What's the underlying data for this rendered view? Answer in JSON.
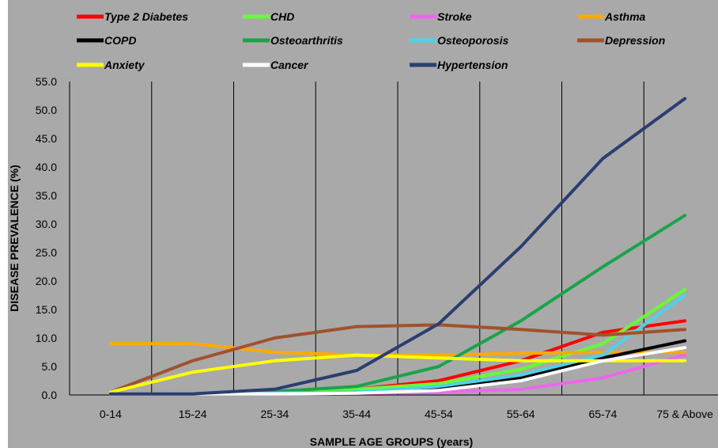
{
  "chart_data": {
    "type": "line",
    "title": "",
    "xlabel": "SAMPLE AGE GROUPS (years)",
    "ylabel": "DISEASE PREVALENCE (%)",
    "ylim": [
      0,
      55
    ],
    "y_ticks": [
      "0.0",
      "5.0",
      "10.0",
      "15.0",
      "20.0",
      "25.0",
      "30.0",
      "35.0",
      "40.0",
      "45.0",
      "50.0",
      "55.0"
    ],
    "grid": "vertical",
    "legend_position": "top",
    "background_color": "#a9a9a9",
    "categories": [
      "0-14",
      "15-24",
      "25-34",
      "35-44",
      "45-54",
      "55-64",
      "65-74",
      "75 & Above"
    ],
    "series": [
      {
        "name": "Type 2 Diabetes",
        "color": "#ff0000",
        "values": [
          0.2,
          0.2,
          0.4,
          1.0,
          2.5,
          6.0,
          11.0,
          13.0
        ]
      },
      {
        "name": "CHD",
        "color": "#66ff33",
        "values": [
          0.2,
          0.2,
          0.5,
          1.0,
          2.0,
          4.5,
          9.0,
          18.5
        ]
      },
      {
        "name": "Stroke",
        "color": "#ee66ee",
        "values": [
          0.2,
          0.2,
          0.2,
          0.3,
          0.5,
          1.0,
          3.0,
          7.0
        ]
      },
      {
        "name": "Asthma",
        "color": "#ffaa00",
        "values": [
          9.0,
          9.0,
          7.5,
          7.0,
          7.0,
          7.3,
          7.5,
          7.5
        ]
      },
      {
        "name": "COPD",
        "color": "#000000",
        "values": [
          0.2,
          0.2,
          0.3,
          0.5,
          1.0,
          3.0,
          6.5,
          9.5
        ]
      },
      {
        "name": "Osteoarthritis",
        "color": "#1aa34a",
        "values": [
          0.2,
          0.2,
          0.6,
          1.5,
          5.0,
          13.0,
          22.5,
          31.5
        ]
      },
      {
        "name": "Osteoporosis",
        "color": "#4dd2e6",
        "values": [
          0.2,
          0.2,
          0.3,
          0.5,
          1.5,
          3.5,
          7.0,
          17.5
        ]
      },
      {
        "name": "Depression",
        "color": "#a0522d",
        "values": [
          0.5,
          6.0,
          10.0,
          12.0,
          12.3,
          11.5,
          10.5,
          11.5
        ]
      },
      {
        "name": "Anxiety",
        "color": "#ffff00",
        "values": [
          0.5,
          4.0,
          6.0,
          7.0,
          6.5,
          6.0,
          6.0,
          6.0
        ]
      },
      {
        "name": "Cancer",
        "color": "#ffffff",
        "values": [
          0.2,
          0.2,
          0.2,
          0.3,
          0.8,
          2.5,
          6.0,
          8.3
        ]
      },
      {
        "name": "Hypertension",
        "color": "#2c3e70",
        "values": [
          0.2,
          0.2,
          1.0,
          4.3,
          12.5,
          26.0,
          41.5,
          52.0
        ]
      }
    ]
  }
}
